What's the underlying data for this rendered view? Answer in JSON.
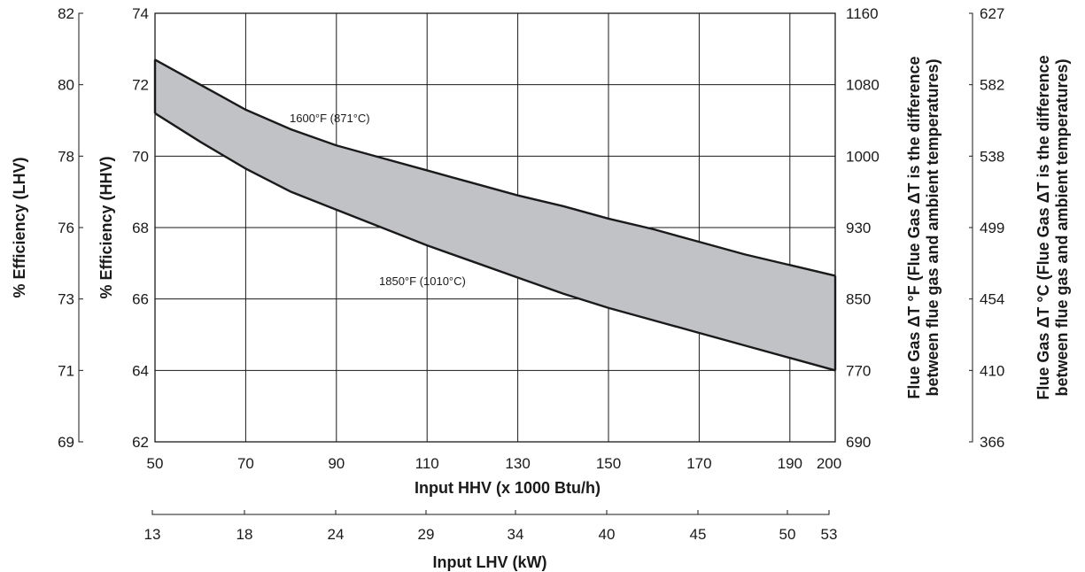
{
  "chart_data": {
    "type": "area",
    "xlabel": "Input HHV (x 1000 Btu/h)",
    "xlim": [
      50,
      200
    ],
    "x_ticks": [
      "50",
      "70",
      "90",
      "110",
      "130",
      "150",
      "170",
      "190",
      "200"
    ],
    "x_tick_values": [
      50,
      70,
      90,
      110,
      130,
      150,
      170,
      190,
      200
    ],
    "secondary_xlabel": "Input LHV (kW)",
    "secondary_x_ticks": [
      "13",
      "18",
      "24",
      "29",
      "34",
      "40",
      "45",
      "50",
      "53"
    ],
    "ylabel": "% Efficiency (HHV)",
    "ylim": [
      62,
      74
    ],
    "y_ticks": [
      "62",
      "64",
      "66",
      "68",
      "70",
      "72",
      "74"
    ],
    "y_tick_values": [
      62,
      64,
      66,
      68,
      70,
      72,
      74
    ],
    "secondary_ylabel": "% Efficiency (LHV)",
    "secondary_y_ticks": [
      "69",
      "71",
      "73",
      "76",
      "78",
      "80",
      "82"
    ],
    "right_axis_f_label_line1": "Flue Gas ΔT °F (Flue Gas ΔT is the difference",
    "right_axis_f_label_line2": "between flue gas and ambient temperatures)",
    "right_axis_f_ticks": [
      "690",
      "770",
      "850",
      "930",
      "1000",
      "1080",
      "1160"
    ],
    "right_axis_c_label_line1": "Flue Gas ΔT °C (Flue Gas ΔT is the difference",
    "right_axis_c_label_line2": "between flue gas and ambient temperatures)",
    "right_axis_c_ticks": [
      "366",
      "410",
      "454",
      "499",
      "538",
      "582",
      "627"
    ],
    "grid": true,
    "series": [
      {
        "name": "1600°F (871°C)",
        "x": [
          50,
          60,
          70,
          80,
          90,
          100,
          110,
          120,
          130,
          140,
          150,
          160,
          170,
          180,
          190,
          202
        ],
        "values": [
          72.7,
          72.0,
          71.3,
          70.75,
          70.3,
          69.95,
          69.6,
          69.25,
          68.9,
          68.6,
          68.25,
          67.95,
          67.6,
          67.25,
          66.95,
          66.65
        ]
      },
      {
        "name": "1850°F (1010°C)",
        "x": [
          50,
          60,
          70,
          80,
          90,
          100,
          110,
          120,
          130,
          140,
          150,
          160,
          170,
          180,
          190,
          202
        ],
        "values": [
          71.2,
          70.4,
          69.65,
          69.0,
          68.5,
          68.0,
          67.5,
          67.05,
          66.6,
          66.15,
          65.75,
          65.4,
          65.05,
          64.7,
          64.35,
          64.0
        ]
      }
    ]
  }
}
